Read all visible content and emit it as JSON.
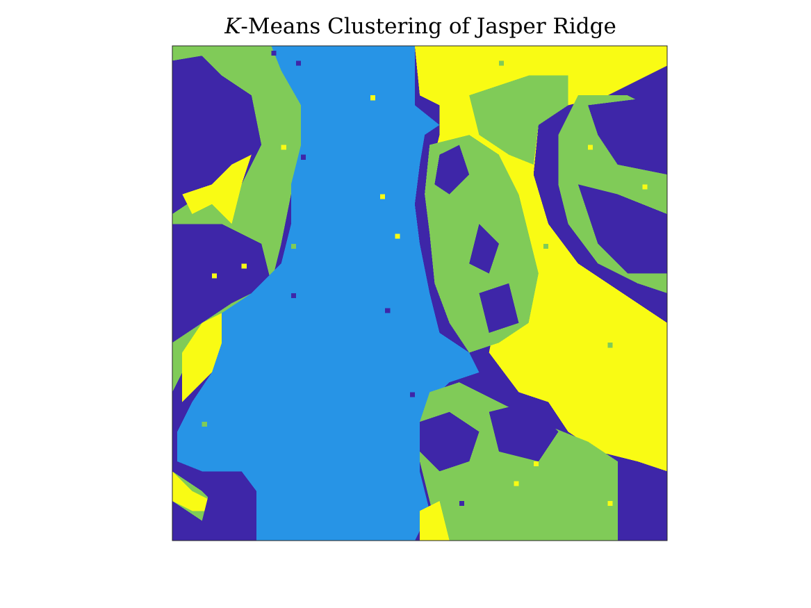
{
  "chart_data": {
    "type": "heatmap",
    "title_var": "K",
    "title_rest": "-Means Clustering of Jasper Ridge",
    "axes_visible": false,
    "grid": false,
    "legend": "none",
    "cluster_colors": {
      "dark_blue": "#3e26a8",
      "light_blue": "#2794e6",
      "green": "#80cb58",
      "yellow": "#f9fb14"
    },
    "colormap_order": [
      "#3e26a8",
      "#2794e6",
      "#80cb58",
      "#f9fb14"
    ],
    "grid_size": [
      100,
      100
    ],
    "regions": [
      {
        "cluster": 0,
        "polygon": [
          [
            0,
            0
          ],
          [
            100,
            0
          ],
          [
            100,
            100
          ],
          [
            0,
            100
          ]
        ]
      },
      {
        "cluster": 2,
        "polygon": [
          [
            0,
            0
          ],
          [
            20,
            0
          ],
          [
            22,
            5
          ],
          [
            26,
            12
          ],
          [
            26,
            20
          ],
          [
            24,
            30
          ],
          [
            22,
            40
          ],
          [
            20,
            48
          ],
          [
            14,
            52
          ],
          [
            8,
            56
          ],
          [
            4,
            62
          ],
          [
            0,
            70
          ],
          [
            0,
            0
          ]
        ]
      },
      {
        "cluster": 0,
        "polygon": [
          [
            0,
            3
          ],
          [
            6,
            2
          ],
          [
            10,
            6
          ],
          [
            16,
            10
          ],
          [
            18,
            20
          ],
          [
            14,
            28
          ],
          [
            6,
            30
          ],
          [
            0,
            34
          ]
        ]
      },
      {
        "cluster": 0,
        "polygon": [
          [
            0,
            36
          ],
          [
            10,
            36
          ],
          [
            18,
            40
          ],
          [
            20,
            48
          ],
          [
            12,
            52
          ],
          [
            6,
            56
          ],
          [
            0,
            60
          ]
        ]
      },
      {
        "cluster": 3,
        "polygon": [
          [
            2,
            30
          ],
          [
            8,
            28
          ],
          [
            12,
            24
          ],
          [
            16,
            22
          ],
          [
            14,
            28
          ],
          [
            12,
            36
          ],
          [
            8,
            32
          ],
          [
            4,
            34
          ]
        ]
      },
      {
        "cluster": 3,
        "polygon": [
          [
            2,
            62
          ],
          [
            6,
            56
          ],
          [
            10,
            54
          ],
          [
            12,
            60
          ],
          [
            8,
            66
          ],
          [
            4,
            70
          ],
          [
            2,
            72
          ]
        ]
      },
      {
        "cluster": 2,
        "polygon": [
          [
            0,
            86
          ],
          [
            6,
            90
          ],
          [
            10,
            94
          ],
          [
            17,
            98
          ],
          [
            17,
            100
          ],
          [
            0,
            100
          ]
        ]
      },
      {
        "cluster": 3,
        "polygon": [
          [
            0,
            86
          ],
          [
            4,
            90
          ],
          [
            8,
            92
          ],
          [
            12,
            90
          ],
          [
            10,
            94
          ],
          [
            4,
            94
          ],
          [
            0,
            92
          ]
        ]
      },
      {
        "cluster": 0,
        "polygon": [
          [
            8,
            88
          ],
          [
            14,
            86
          ],
          [
            17,
            90
          ],
          [
            17,
            100
          ],
          [
            8,
            100
          ],
          [
            6,
            96
          ]
        ]
      },
      {
        "cluster": 0,
        "polygon": [
          [
            0,
            92
          ],
          [
            6,
            96
          ],
          [
            8,
            100
          ],
          [
            0,
            100
          ]
        ]
      },
      {
        "cluster": 1,
        "polygon": [
          [
            20,
            0
          ],
          [
            49,
            0
          ],
          [
            49,
            12
          ],
          [
            54,
            16
          ],
          [
            51,
            18
          ],
          [
            50,
            24
          ],
          [
            49,
            32
          ],
          [
            50,
            40
          ],
          [
            52,
            50
          ],
          [
            54,
            58
          ],
          [
            60,
            62
          ],
          [
            62,
            66
          ],
          [
            56,
            68
          ],
          [
            52,
            72
          ],
          [
            50,
            78
          ],
          [
            50,
            86
          ],
          [
            52,
            94
          ],
          [
            49,
            100
          ],
          [
            17,
            100
          ],
          [
            17,
            90
          ],
          [
            14,
            86
          ],
          [
            6,
            86
          ],
          [
            1,
            84
          ],
          [
            1,
            78
          ],
          [
            4,
            72
          ],
          [
            8,
            66
          ],
          [
            10,
            60
          ],
          [
            10,
            54
          ],
          [
            16,
            50
          ],
          [
            22,
            44
          ],
          [
            24,
            36
          ],
          [
            24,
            28
          ],
          [
            26,
            20
          ],
          [
            26,
            12
          ],
          [
            22,
            5
          ]
        ]
      },
      {
        "cluster": 3,
        "polygon": [
          [
            49,
            0
          ],
          [
            100,
            0
          ],
          [
            100,
            4
          ],
          [
            88,
            10
          ],
          [
            80,
            12
          ],
          [
            74,
            16
          ],
          [
            73,
            26
          ],
          [
            76,
            36
          ],
          [
            82,
            44
          ],
          [
            88,
            48
          ],
          [
            100,
            56
          ],
          [
            100,
            86
          ],
          [
            94,
            84
          ],
          [
            86,
            82
          ],
          [
            80,
            78
          ],
          [
            76,
            72
          ],
          [
            70,
            70
          ],
          [
            64,
            62
          ],
          [
            66,
            52
          ],
          [
            62,
            44
          ],
          [
            60,
            36
          ],
          [
            56,
            30
          ],
          [
            52,
            26
          ],
          [
            54,
            18
          ],
          [
            54,
            12
          ],
          [
            50,
            10
          ]
        ]
      },
      {
        "cluster": 2,
        "polygon": [
          [
            60,
            10
          ],
          [
            72,
            6
          ],
          [
            80,
            6
          ],
          [
            80,
            12
          ],
          [
            74,
            16
          ],
          [
            73,
            24
          ],
          [
            68,
            22
          ],
          [
            62,
            18
          ]
        ]
      },
      {
        "cluster": 2,
        "polygon": [
          [
            52,
            20
          ],
          [
            60,
            18
          ],
          [
            66,
            22
          ],
          [
            70,
            30
          ],
          [
            72,
            38
          ],
          [
            74,
            46
          ],
          [
            72,
            56
          ],
          [
            66,
            60
          ],
          [
            60,
            62
          ],
          [
            56,
            56
          ],
          [
            53,
            48
          ],
          [
            52,
            38
          ],
          [
            51,
            30
          ]
        ]
      },
      {
        "cluster": 0,
        "polygon": [
          [
            54,
            22
          ],
          [
            58,
            20
          ],
          [
            60,
            26
          ],
          [
            56,
            30
          ],
          [
            53,
            28
          ]
        ]
      },
      {
        "cluster": 0,
        "polygon": [
          [
            62,
            36
          ],
          [
            66,
            40
          ],
          [
            64,
            46
          ],
          [
            60,
            44
          ]
        ]
      },
      {
        "cluster": 0,
        "polygon": [
          [
            62,
            50
          ],
          [
            68,
            48
          ],
          [
            70,
            56
          ],
          [
            64,
            58
          ]
        ]
      },
      {
        "cluster": 2,
        "polygon": [
          [
            82,
            10
          ],
          [
            92,
            10
          ],
          [
            100,
            14
          ],
          [
            100,
            50
          ],
          [
            94,
            48
          ],
          [
            86,
            44
          ],
          [
            80,
            36
          ],
          [
            78,
            28
          ],
          [
            78,
            18
          ]
        ]
      },
      {
        "cluster": 0,
        "polygon": [
          [
            84,
            12
          ],
          [
            100,
            10
          ],
          [
            100,
            26
          ],
          [
            90,
            24
          ],
          [
            86,
            18
          ]
        ]
      },
      {
        "cluster": 0,
        "polygon": [
          [
            82,
            28
          ],
          [
            90,
            30
          ],
          [
            100,
            34
          ],
          [
            100,
            46
          ],
          [
            92,
            46
          ],
          [
            86,
            40
          ]
        ]
      },
      {
        "cluster": 2,
        "polygon": [
          [
            52,
            70
          ],
          [
            58,
            68
          ],
          [
            66,
            72
          ],
          [
            74,
            76
          ],
          [
            84,
            80
          ],
          [
            90,
            84
          ],
          [
            90,
            100
          ],
          [
            54,
            100
          ],
          [
            52,
            92
          ],
          [
            50,
            84
          ],
          [
            50,
            76
          ]
        ]
      },
      {
        "cluster": 0,
        "polygon": [
          [
            50,
            76
          ],
          [
            56,
            74
          ],
          [
            62,
            78
          ],
          [
            60,
            84
          ],
          [
            54,
            86
          ],
          [
            50,
            82
          ]
        ]
      },
      {
        "cluster": 0,
        "polygon": [
          [
            64,
            74
          ],
          [
            72,
            72
          ],
          [
            78,
            78
          ],
          [
            74,
            84
          ],
          [
            66,
            82
          ]
        ]
      },
      {
        "cluster": 3,
        "polygon": [
          [
            50,
            94
          ],
          [
            54,
            92
          ],
          [
            56,
            100
          ],
          [
            50,
            100
          ]
        ]
      },
      {
        "cluster": 0,
        "polygon": [
          [
            90,
            86
          ],
          [
            100,
            86
          ],
          [
            100,
            100
          ],
          [
            90,
            100
          ]
        ]
      }
    ],
    "speckles": [
      {
        "cluster": 0,
        "x": 20,
        "y": 1
      },
      {
        "cluster": 0,
        "x": 25,
        "y": 3
      },
      {
        "cluster": 2,
        "x": 22,
        "y": 8
      },
      {
        "cluster": 3,
        "x": 22,
        "y": 20
      },
      {
        "cluster": 0,
        "x": 26,
        "y": 22
      },
      {
        "cluster": 2,
        "x": 24,
        "y": 40
      },
      {
        "cluster": 0,
        "x": 24,
        "y": 50
      },
      {
        "cluster": 3,
        "x": 40,
        "y": 10
      },
      {
        "cluster": 3,
        "x": 42,
        "y": 30
      },
      {
        "cluster": 3,
        "x": 45,
        "y": 38
      },
      {
        "cluster": 0,
        "x": 43,
        "y": 53
      },
      {
        "cluster": 0,
        "x": 48,
        "y": 70
      },
      {
        "cluster": 3,
        "x": 63,
        "y": 1
      },
      {
        "cluster": 2,
        "x": 66,
        "y": 3
      },
      {
        "cluster": 2,
        "x": 70,
        "y": 12
      },
      {
        "cluster": 0,
        "x": 76,
        "y": 28
      },
      {
        "cluster": 2,
        "x": 75,
        "y": 40
      },
      {
        "cluster": 3,
        "x": 84,
        "y": 20
      },
      {
        "cluster": 3,
        "x": 95,
        "y": 28
      },
      {
        "cluster": 2,
        "x": 88,
        "y": 60
      },
      {
        "cluster": 3,
        "x": 73,
        "y": 84
      },
      {
        "cluster": 3,
        "x": 88,
        "y": 92
      },
      {
        "cluster": 2,
        "x": 60,
        "y": 96
      },
      {
        "cluster": 3,
        "x": 69,
        "y": 88
      },
      {
        "cluster": 0,
        "x": 58,
        "y": 92
      },
      {
        "cluster": 3,
        "x": 8,
        "y": 46
      },
      {
        "cluster": 3,
        "x": 14,
        "y": 44
      },
      {
        "cluster": 2,
        "x": 6,
        "y": 76
      },
      {
        "cluster": 0,
        "x": 2,
        "y": 52
      }
    ]
  }
}
